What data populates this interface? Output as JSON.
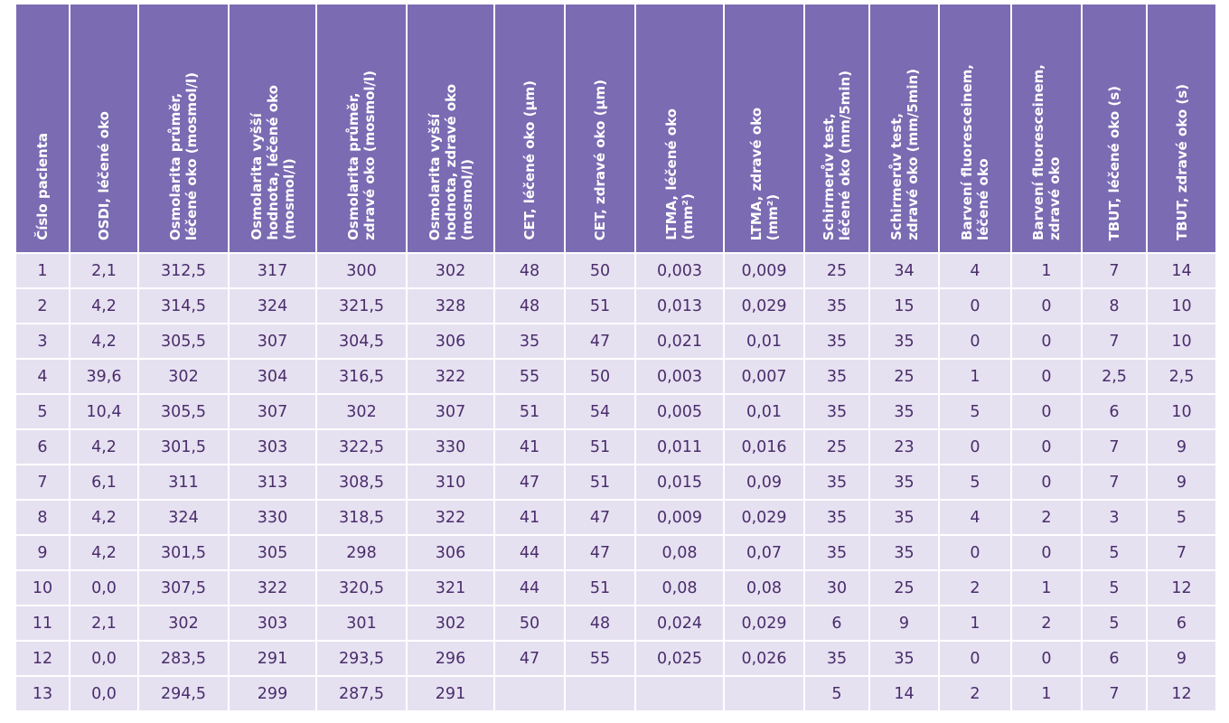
{
  "columns": [
    "Číslo pacienta",
    "OSDI, léčené oko",
    "Osmolarita průměr,\nléčené oko (mosmol/l)",
    "Osmolarita vyšší\nhodnota, léčené oko\n(mosmol/l)",
    "Osmolarita průměr,\nzdravé oko (mosmol/l)",
    "Osmolarita vyšší\nhodnota, zdravé oko\n(mosmol/l)",
    "CET, léčené oko (µm)",
    "CET, zdravé oko (µm)",
    "LTMA, léčené oko\n(mm²)",
    "LTMA, zdravé oko\n(mm²)",
    "Schirmerův test,\nléčené oko (mm/5min)",
    "Schirmerův test,\nzdravé oko (mm/5min)",
    "Barvení fluoresceinem,\nléčené oko",
    "Barvení fluoresceinem,\nzdravé oko",
    "TBUT, léčené oko (s)",
    "TBUT, zdravé oko (s)"
  ],
  "rows": [
    [
      "1",
      "2,1",
      "312,5",
      "317",
      "300",
      "302",
      "48",
      "50",
      "0,003",
      "0,009",
      "25",
      "34",
      "4",
      "1",
      "7",
      "14"
    ],
    [
      "2",
      "4,2",
      "314,5",
      "324",
      "321,5",
      "328",
      "48",
      "51",
      "0,013",
      "0,029",
      "35",
      "15",
      "0",
      "0",
      "8",
      "10"
    ],
    [
      "3",
      "4,2",
      "305,5",
      "307",
      "304,5",
      "306",
      "35",
      "47",
      "0,021",
      "0,01",
      "35",
      "35",
      "0",
      "0",
      "7",
      "10"
    ],
    [
      "4",
      "39,6",
      "302",
      "304",
      "316,5",
      "322",
      "55",
      "50",
      "0,003",
      "0,007",
      "35",
      "25",
      "1",
      "0",
      "2,5",
      "2,5"
    ],
    [
      "5",
      "10,4",
      "305,5",
      "307",
      "302",
      "307",
      "51",
      "54",
      "0,005",
      "0,01",
      "35",
      "35",
      "5",
      "0",
      "6",
      "10"
    ],
    [
      "6",
      "4,2",
      "301,5",
      "303",
      "322,5",
      "330",
      "41",
      "51",
      "0,011",
      "0,016",
      "25",
      "23",
      "0",
      "0",
      "7",
      "9"
    ],
    [
      "7",
      "6,1",
      "311",
      "313",
      "308,5",
      "310",
      "47",
      "51",
      "0,015",
      "0,09",
      "35",
      "35",
      "5",
      "0",
      "7",
      "9"
    ],
    [
      "8",
      "4,2",
      "324",
      "330",
      "318,5",
      "322",
      "41",
      "47",
      "0,009",
      "0,029",
      "35",
      "35",
      "4",
      "2",
      "3",
      "5"
    ],
    [
      "9",
      "4,2",
      "301,5",
      "305",
      "298",
      "306",
      "44",
      "47",
      "0,08",
      "0,07",
      "35",
      "35",
      "0",
      "0",
      "5",
      "7"
    ],
    [
      "10",
      "0,0",
      "307,5",
      "322",
      "320,5",
      "321",
      "44",
      "51",
      "0,08",
      "0,08",
      "30",
      "25",
      "2",
      "1",
      "5",
      "12"
    ],
    [
      "11",
      "2,1",
      "302",
      "303",
      "301",
      "302",
      "50",
      "48",
      "0,024",
      "0,029",
      "6",
      "9",
      "1",
      "2",
      "5",
      "6"
    ],
    [
      "12",
      "0,0",
      "283,5",
      "291",
      "293,5",
      "296",
      "47",
      "55",
      "0,025",
      "0,026",
      "35",
      "35",
      "0",
      "0",
      "6",
      "9"
    ],
    [
      "13",
      "0,0",
      "294,5",
      "299",
      "287,5",
      "291",
      "",
      "",
      "",
      "",
      "5",
      "14",
      "2",
      "1",
      "7",
      "12"
    ]
  ]
}
